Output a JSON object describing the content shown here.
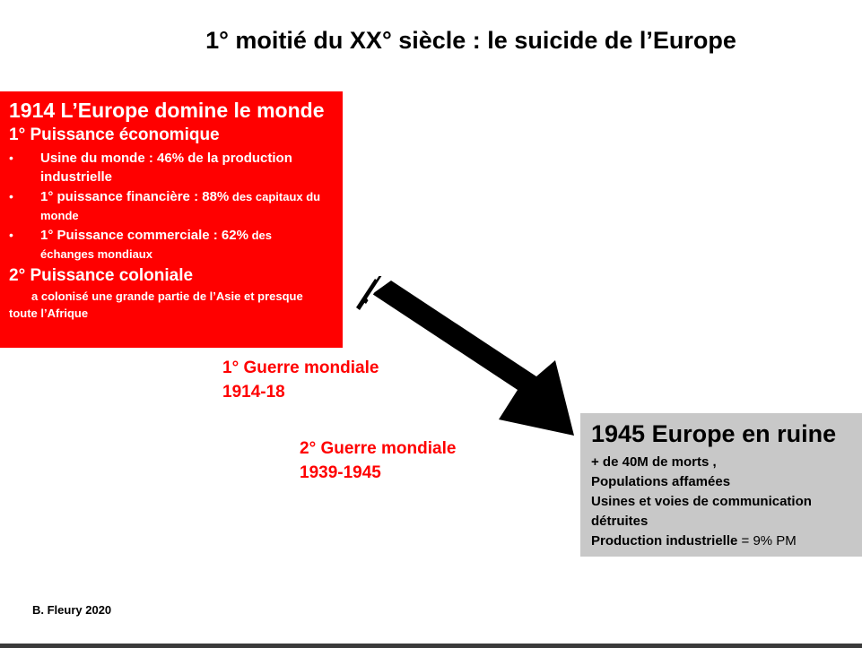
{
  "title": "1° moitié du XX° siècle : le suicide de l’Europe",
  "europe_1914": {
    "heading": "1914 L’Europe domine le monde",
    "economic_heading": "1° Puissance économique",
    "bullets": [
      {
        "bold": "Usine du monde : 46% de la production industrielle",
        "small": ""
      },
      {
        "bold": "1° puissance financière  : 88%",
        "small": " des capitaux du monde"
      },
      {
        "bold": "1° Puissance commerciale   : 62%",
        "small": " des échanges  mondiaux"
      }
    ],
    "colonial_heading": "2° Puissance coloniale",
    "colonial_text": "a colonisé une grande partie de l’Asie et presque toute l’Afrique"
  },
  "wars": [
    {
      "name": "1° Guerre mondiale",
      "dates": "1914-18"
    },
    {
      "name": "2° Guerre mondiale",
      "dates": "1939-1945"
    }
  ],
  "europe_1945": {
    "heading": "1945 Europe en ruine",
    "lines": [
      "+ de 40M de morts ,",
      "Populations affamées",
      "Usines et voies de communication détruites"
    ],
    "production_label": "Production industrielle",
    "production_value": " = 9% PM"
  },
  "author": "B. Fleury  2020",
  "colors": {
    "red_box": "#ff0000",
    "grey_box": "#c8c8c8",
    "arrow": "#000000",
    "war_text": "#ff0000"
  }
}
